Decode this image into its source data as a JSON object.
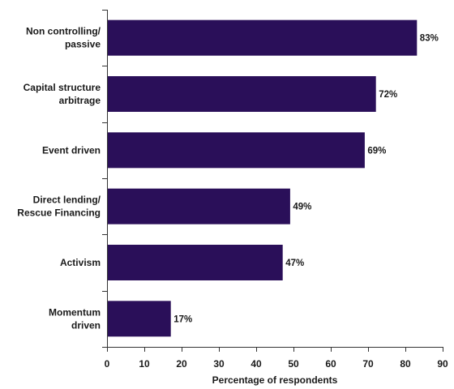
{
  "chart_data": {
    "type": "bar",
    "orientation": "horizontal",
    "categories": [
      [
        "Non controlling/",
        "passive"
      ],
      [
        "Capital structure",
        "arbitrage"
      ],
      [
        "Event driven"
      ],
      [
        "Direct lending/",
        "Rescue Financing"
      ],
      [
        "Activism"
      ],
      [
        "Momentum",
        "driven"
      ]
    ],
    "values": [
      83,
      72,
      69,
      49,
      47,
      17
    ],
    "value_labels": [
      "83%",
      "72%",
      "69%",
      "49%",
      "47%",
      "17%"
    ],
    "title": "",
    "xlabel": "Percentage of respondents",
    "ylabel": "",
    "xlim": [
      0,
      90
    ],
    "x_ticks": [
      0,
      10,
      20,
      30,
      40,
      50,
      60,
      70,
      80,
      90
    ],
    "grid": false,
    "legend": "none",
    "colors": {
      "bar": "#2a0f59",
      "text": "#1a1a1a",
      "axis": "#333333"
    }
  }
}
